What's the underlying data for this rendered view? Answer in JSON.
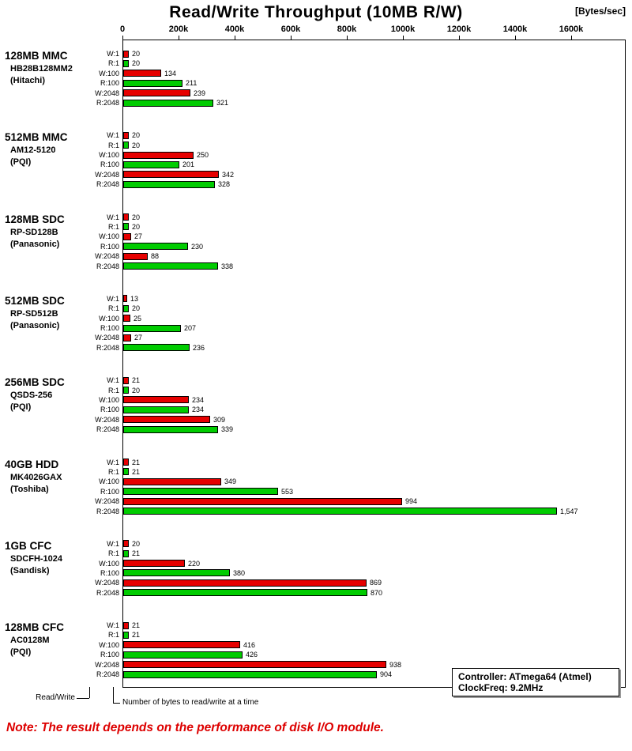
{
  "title": "Read/Write Throughput (10MB R/W)",
  "unit_label": "[Bytes/sec]",
  "note": "Note: The result depends on the performance of disk I/O module.",
  "info_box": {
    "controller": "Controller: ATmega64 (Atmel)",
    "clockfreq": "ClockFreq: 9.2MHz"
  },
  "legend": {
    "read_write": "Read/Write",
    "bytes_note": "Number of bytes to read/write at a time"
  },
  "chart_data": {
    "type": "bar",
    "orientation": "horizontal",
    "title": "Read/Write Throughput (10MB R/W)",
    "xlabel": "[Bytes/sec]",
    "xlim": [
      0,
      1600000
    ],
    "x_ticks": [
      "0",
      "200k",
      "400k",
      "600k",
      "800k",
      "1000k",
      "1200k",
      "1400k",
      "1600k"
    ],
    "grid": false,
    "bar_labels": [
      "W:1",
      "R:1",
      "W:100",
      "R:100",
      "W:2048",
      "R:2048"
    ],
    "bar_label_meaning": "W=write, R=read; number = bytes read/written at a time",
    "value_unit": "k (bar length in Bytes/sec = printed value x 1000)",
    "colors": {
      "write": "#e60000",
      "read": "#00cc00"
    },
    "groups": [
      {
        "name": "128MB MMC",
        "model": "HB28B128MM2",
        "maker": "(Hitachi)",
        "values": [
          20,
          20,
          134,
          211,
          239,
          321
        ]
      },
      {
        "name": "512MB MMC",
        "model": "AM12-5120",
        "maker": "(PQI)",
        "values": [
          20,
          20,
          250,
          201,
          342,
          328
        ]
      },
      {
        "name": "128MB SDC",
        "model": "RP-SD128B",
        "maker": "(Panasonic)",
        "values": [
          20,
          20,
          27,
          230,
          88,
          338
        ]
      },
      {
        "name": "512MB SDC",
        "model": "RP-SD512B",
        "maker": "(Panasonic)",
        "values": [
          13,
          20,
          25,
          207,
          27,
          236
        ]
      },
      {
        "name": "256MB SDC",
        "model": "QSDS-256",
        "maker": "(PQI)",
        "values": [
          21,
          20,
          234,
          234,
          309,
          339
        ]
      },
      {
        "name": "40GB HDD",
        "model": "MK4026GAX",
        "maker": "(Toshiba)",
        "values": [
          21,
          21,
          349,
          553,
          994,
          1547
        ]
      },
      {
        "name": "1GB CFC",
        "model": "SDCFH-1024",
        "maker": "(Sandisk)",
        "values": [
          20,
          21,
          220,
          380,
          869,
          870
        ]
      },
      {
        "name": "128MB CFC",
        "model": "AC0128M",
        "maker": "(PQI)",
        "values": [
          21,
          21,
          416,
          426,
          938,
          904
        ]
      }
    ]
  }
}
